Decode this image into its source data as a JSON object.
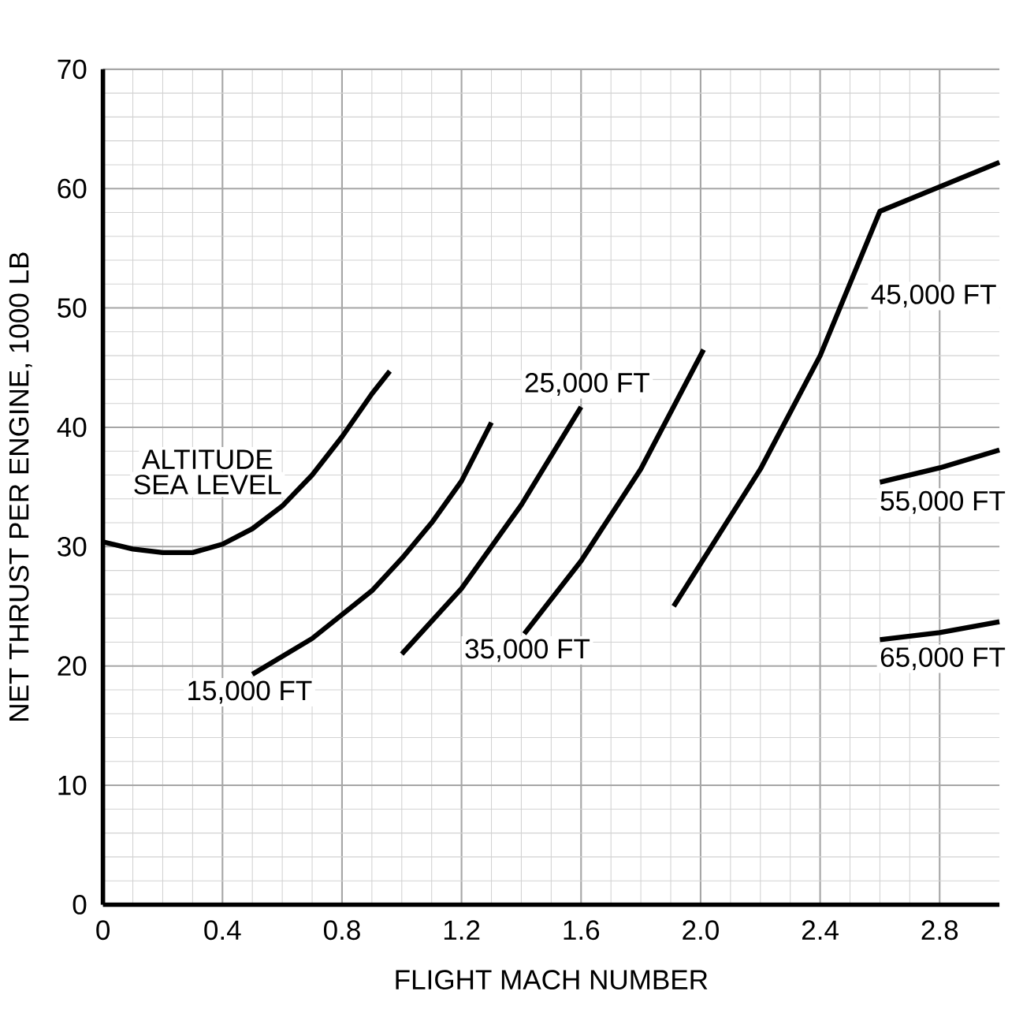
{
  "chart_data": {
    "type": "line",
    "xlabel": "FLIGHT MACH NUMBER",
    "ylabel": "NET THRUST PER ENGINE, 1000 LB",
    "xlim": [
      0,
      3.0
    ],
    "ylim": [
      0,
      70
    ],
    "xticks": [
      0,
      0.4,
      0.8,
      1.2,
      1.6,
      {
        "value": 2.0,
        "label": "2.0"
      },
      2.4,
      2.8
    ],
    "yticks": [
      0,
      10,
      20,
      30,
      40,
      50,
      60,
      70
    ],
    "grid": true,
    "legend": false,
    "marker": "none",
    "line_style": "solid",
    "annotations": [
      "ALTITUDE"
    ],
    "series": [
      {
        "name": "SEA LEVEL",
        "color": "#000000",
        "x": [
          0,
          0.1,
          0.2,
          0.3,
          0.4,
          0.5,
          0.6,
          0.7,
          0.8,
          0.9,
          0.96
        ],
        "values": [
          30.4,
          29.8,
          29.5,
          29.5,
          30.2,
          31.5,
          33.4,
          36.0,
          39.2,
          42.8,
          44.7
        ]
      },
      {
        "name": "15,000 FT",
        "color": "#000000",
        "x": [
          0.5,
          0.7,
          0.9,
          1.0,
          1.1,
          1.2,
          1.3
        ],
        "values": [
          19.3,
          22.3,
          26.3,
          29.0,
          32.0,
          35.5,
          40.4
        ]
      },
      {
        "name": "25,000 FT",
        "color": "#000000",
        "x": [
          1.0,
          1.2,
          1.4,
          1.6
        ],
        "values": [
          21.0,
          26.5,
          33.5,
          41.7
        ]
      },
      {
        "name": "35,000 FT",
        "color": "#000000",
        "x": [
          1.41,
          1.6,
          1.8,
          2.01
        ],
        "values": [
          22.7,
          28.8,
          36.5,
          46.5
        ]
      },
      {
        "name": "45,000 FT",
        "color": "#000000",
        "x": [
          1.91,
          2.2,
          2.4,
          2.6,
          3.0
        ],
        "values": [
          25.0,
          36.5,
          46.0,
          58.1,
          62.2
        ]
      },
      {
        "name": "55,000 FT",
        "color": "#000000",
        "x": [
          2.6,
          2.8,
          3.0
        ],
        "values": [
          35.4,
          36.6,
          38.1
        ]
      },
      {
        "name": "65,000 FT",
        "color": "#000000",
        "x": [
          2.6,
          2.8,
          3.0
        ],
        "values": [
          22.2,
          22.8,
          23.7
        ]
      }
    ]
  }
}
